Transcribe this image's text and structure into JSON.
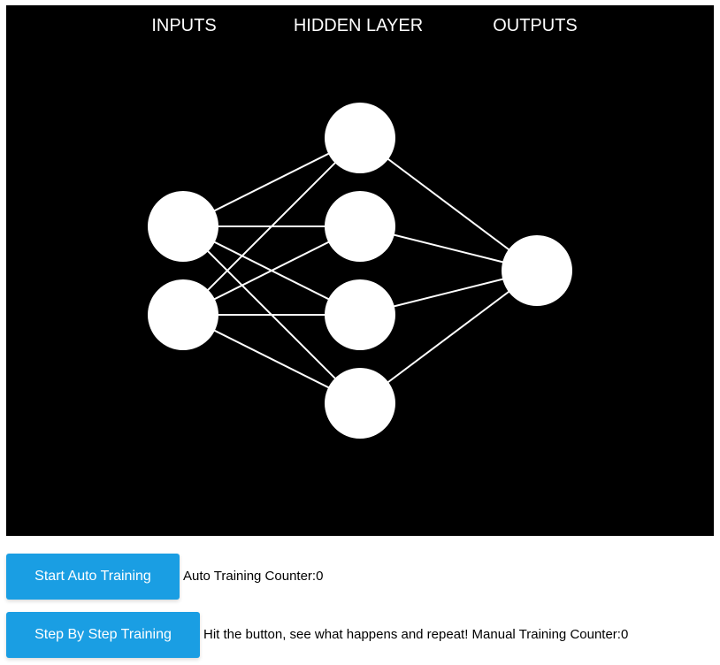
{
  "diagram": {
    "labels": {
      "inputs": "INPUTS",
      "hidden": "HIDDEN LAYER",
      "outputs": "OUTPUTS"
    },
    "layers": [
      {
        "name": "inputs",
        "neurons": 2
      },
      {
        "name": "hidden",
        "neurons": 4
      },
      {
        "name": "outputs",
        "neurons": 1
      }
    ],
    "connections": "fully-connected",
    "colors": {
      "background": "#000000",
      "neuron": "#ffffff",
      "connection": "#ffffff"
    }
  },
  "controls": {
    "auto_button_label": "Start Auto Training",
    "auto_status_prefix": "Auto Training Counter:",
    "auto_counter": 0,
    "step_button_label": "Step By Step Training",
    "step_status_prefix": "Hit the button, see what happens and repeat! Manual Training Counter:",
    "step_counter": 0,
    "button_color": "#1a9ee3"
  }
}
